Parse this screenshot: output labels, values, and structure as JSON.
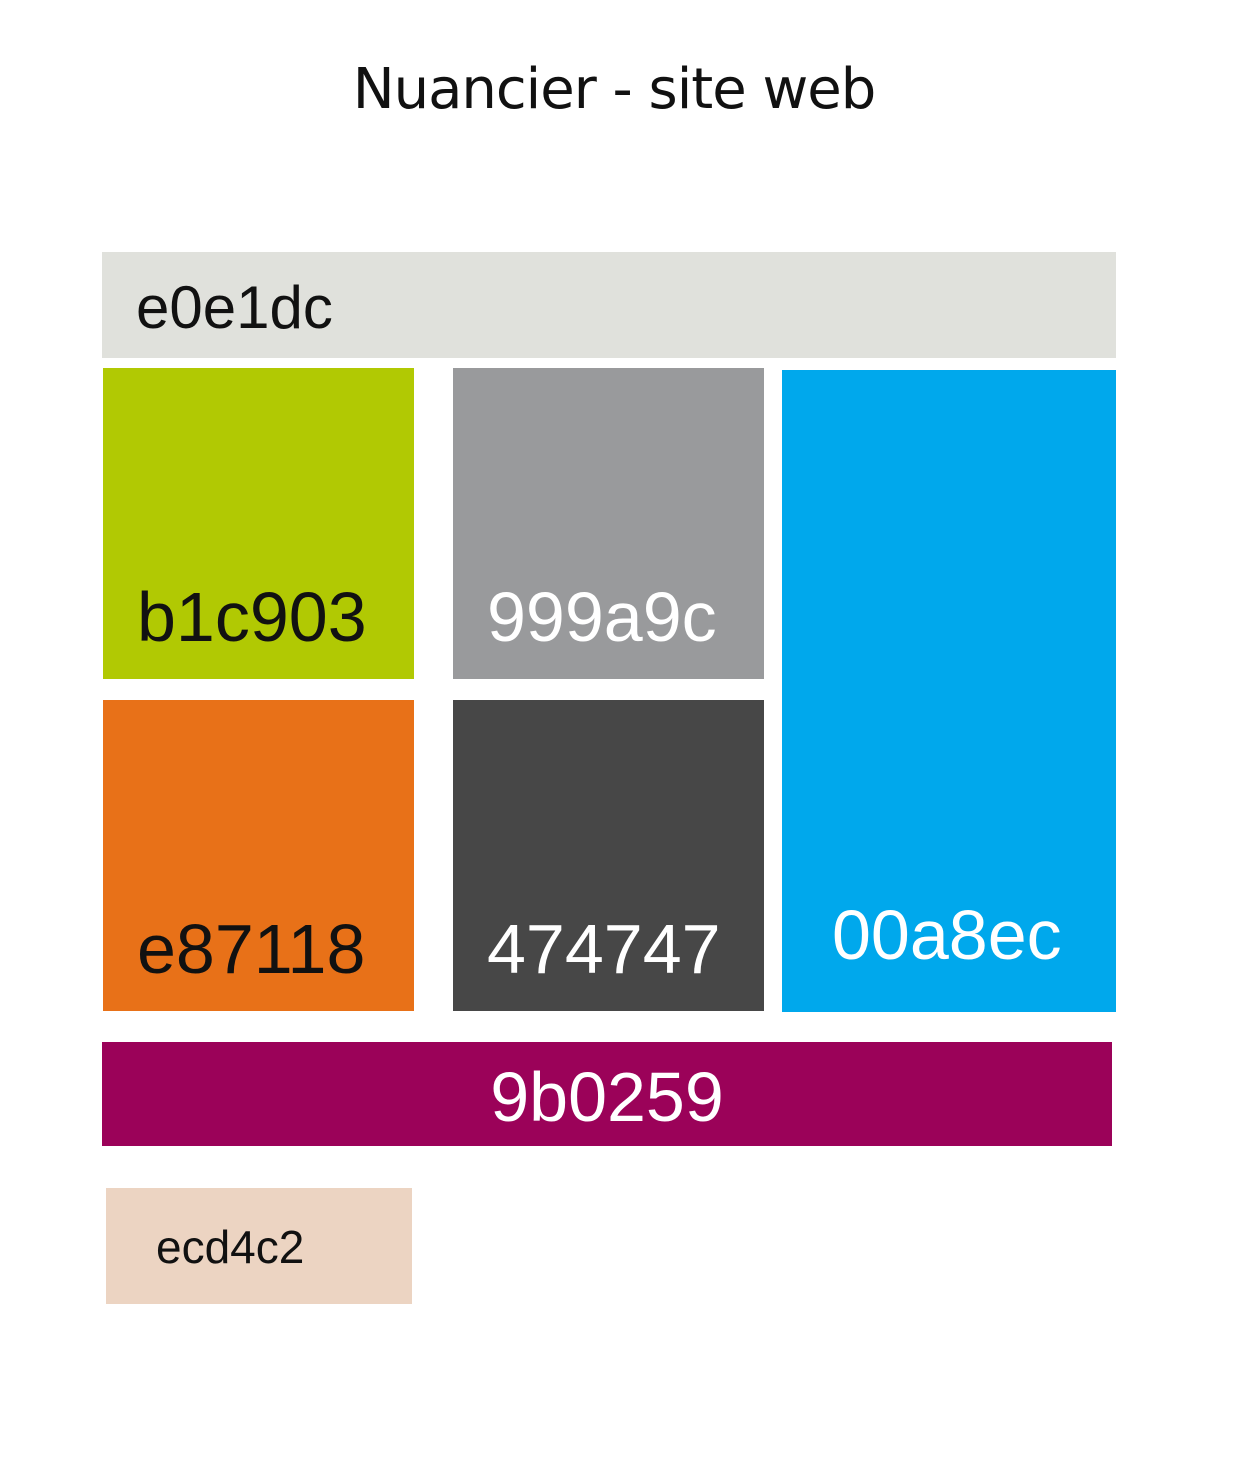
{
  "title": "Nuancier - site web",
  "swatches": {
    "e0e1dc": {
      "label": "e0e1dc",
      "color": "#e0e1dc"
    },
    "b1c903": {
      "label": "b1c903",
      "color": "#b1c903"
    },
    "999a9c": {
      "label": "999a9c",
      "color": "#999a9c"
    },
    "00a8ec": {
      "label": "00a8ec",
      "color": "#00a8ec"
    },
    "e87118": {
      "label": "e87118",
      "color": "#e87118"
    },
    "474747": {
      "label": "474747",
      "color": "#474747"
    },
    "9b0259": {
      "label": "9b0259",
      "color": "#9b0259"
    },
    "ecd4c2": {
      "label": "ecd4c2",
      "color": "#ecd4c2"
    }
  }
}
